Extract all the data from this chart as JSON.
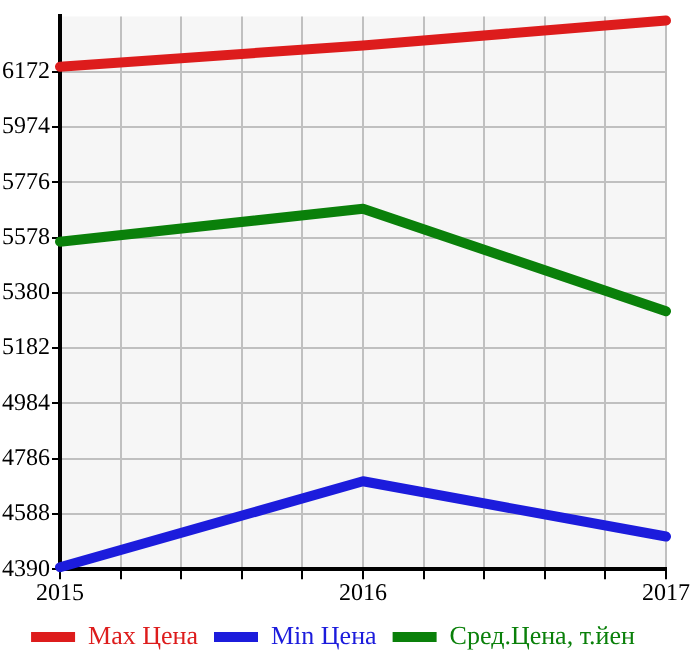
{
  "chart_data": {
    "type": "line",
    "x": [
      2015,
      2016,
      2017
    ],
    "series": [
      {
        "name": "Max Цена",
        "color": "#dd1c1c",
        "values": [
          6190,
          6266,
          6355
        ]
      },
      {
        "name": "Min Цена",
        "color": "#1c1cdc",
        "values": [
          4397,
          4705,
          4507
        ]
      },
      {
        "name": "Сред.Цена, т.йен",
        "color": "#0a800a",
        "values": [
          5563,
          5681,
          5314
        ]
      }
    ],
    "xlim": [
      2015,
      2017
    ],
    "xticks": [
      2015,
      {
        "value": 2015.2,
        "label": null
      },
      {
        "value": 2015.4,
        "label": null
      },
      {
        "value": 2015.6,
        "label": null
      },
      {
        "value": 2015.8,
        "label": null
      },
      2016,
      {
        "value": 2016.2,
        "label": null
      },
      {
        "value": 2016.4,
        "label": null
      },
      {
        "value": 2016.6,
        "label": null
      },
      {
        "value": 2016.8,
        "label": null
      },
      2017
    ],
    "ylim": [
      4390,
      6370
    ],
    "yticks": [
      4390,
      4588,
      4786,
      4984,
      5182,
      5380,
      5578,
      5776,
      5974,
      6172
    ],
    "grid": true,
    "legend": "bottom",
    "marker": "none",
    "line_style": "solid"
  }
}
